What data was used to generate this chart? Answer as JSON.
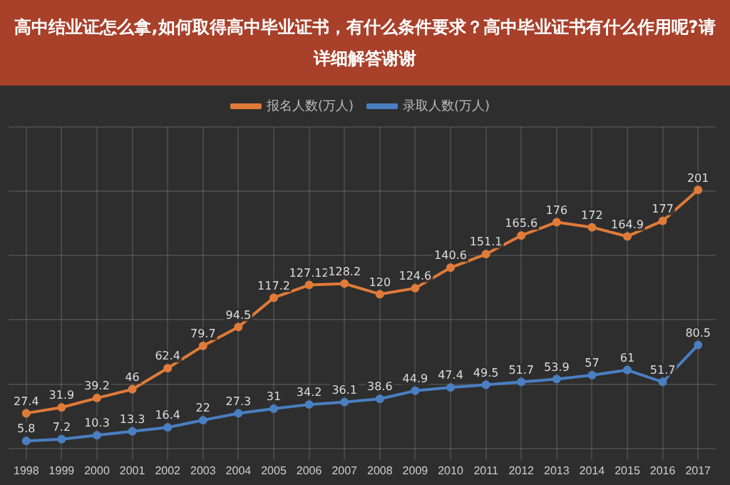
{
  "chart_data": {
    "type": "line",
    "title": "高中结业证怎么拿,如何取得高中毕业证书，有什么条件要求？高中毕业证书有什么作用呢?请详细解答谢谢",
    "categories": [
      "1998",
      "1999",
      "2000",
      "2001",
      "2002",
      "2003",
      "2004",
      "2005",
      "2006",
      "2007",
      "2008",
      "2009",
      "2010",
      "2011",
      "2012",
      "2013",
      "2014",
      "2015",
      "2016",
      "2017"
    ],
    "series": [
      {
        "name": "报名人数(万人)",
        "color": "#e07b39",
        "values": [
          27.4,
          31.9,
          39.2,
          46,
          62.4,
          79.7,
          94.5,
          117.2,
          127.12,
          128.2,
          120,
          124.6,
          140.6,
          151.1,
          165.6,
          176,
          172,
          164.9,
          177,
          201
        ]
      },
      {
        "name": "录取人数(万人)",
        "color": "#4a7fc1",
        "values": [
          5.8,
          7.2,
          10.3,
          13.3,
          16.4,
          22,
          27.3,
          31,
          34.2,
          36.1,
          38.6,
          44.9,
          47.4,
          49.5,
          51.7,
          53.9,
          57,
          61,
          51.7,
          80.5
        ]
      }
    ],
    "data_labels": true,
    "grid": true,
    "legend": "top",
    "marker": "circle",
    "line_style": "solid"
  }
}
